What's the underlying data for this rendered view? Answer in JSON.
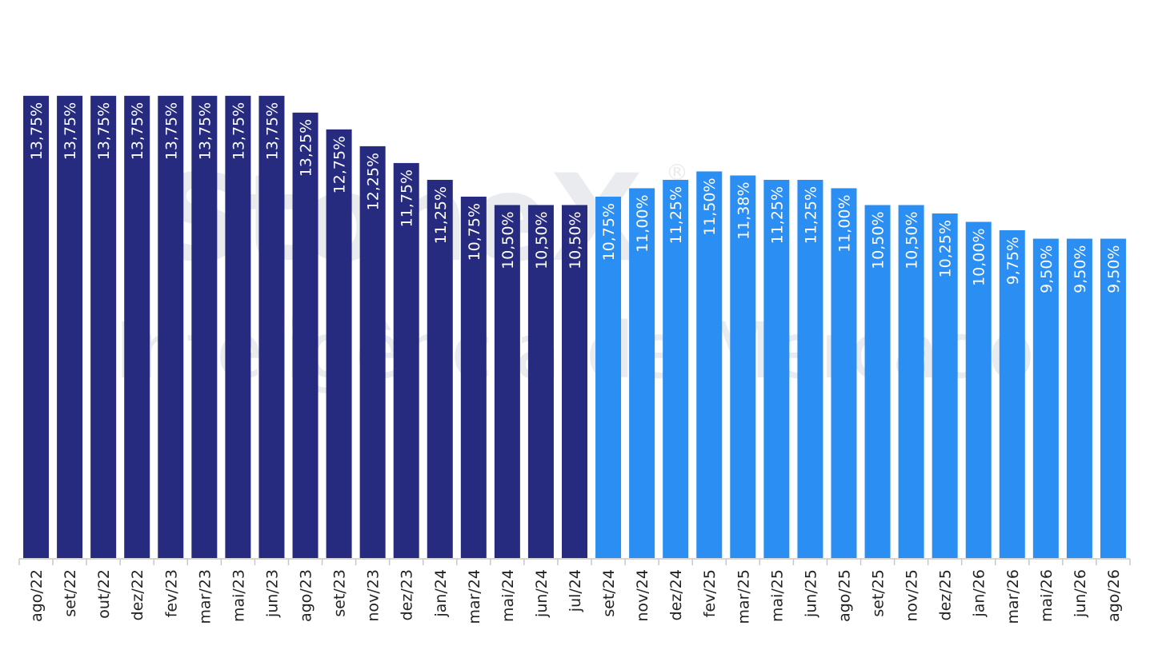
{
  "watermark": {
    "brand": "StoneX",
    "registered": "®",
    "subtitle": "Inteligência de Mercado"
  },
  "colors": {
    "historical": "#262b7f",
    "projection": "#2b8ef2",
    "axis": "#c8c8c8",
    "watermark": "#e9ebee"
  },
  "chart_data": {
    "type": "bar",
    "title": "",
    "xlabel": "",
    "ylabel": "",
    "ylim": [
      0,
      16
    ],
    "grid": false,
    "categories": [
      "ago/22",
      "set/22",
      "out/22",
      "dez/22",
      "fev/23",
      "mar/23",
      "mai/23",
      "jun/23",
      "ago/23",
      "set/23",
      "nov/23",
      "dez/23",
      "jan/24",
      "mar/24",
      "mai/24",
      "jun/24",
      "jul/24",
      "set/24",
      "nov/24",
      "dez/24",
      "fev/25",
      "mar/25",
      "mai/25",
      "jun/25",
      "ago/25",
      "set/25",
      "nov/25",
      "dez/25",
      "jan/26",
      "mar/26",
      "mai/26",
      "jun/26",
      "ago/26"
    ],
    "values": [
      13.75,
      13.75,
      13.75,
      13.75,
      13.75,
      13.75,
      13.75,
      13.75,
      13.25,
      12.75,
      12.25,
      11.75,
      11.25,
      10.75,
      10.5,
      10.5,
      10.5,
      10.75,
      11.0,
      11.25,
      11.5,
      11.38,
      11.25,
      11.25,
      11.0,
      10.5,
      10.5,
      10.25,
      10.0,
      9.75,
      9.5,
      9.5,
      9.5
    ],
    "labels": [
      "13,75%",
      "13,75%",
      "13,75%",
      "13,75%",
      "13,75%",
      "13,75%",
      "13,75%",
      "13,75%",
      "13,25%",
      "12,75%",
      "12,25%",
      "11,75%",
      "11,25%",
      "10,75%",
      "10,50%",
      "10,50%",
      "10,50%",
      "10,75%",
      "11,00%",
      "11,25%",
      "11,50%",
      "11,38%",
      "11,25%",
      "11,25%",
      "11,00%",
      "10,50%",
      "10,50%",
      "10,25%",
      "10,00%",
      "9,75%",
      "9,50%",
      "9,50%",
      "9,50%"
    ],
    "historical_count": 17
  }
}
